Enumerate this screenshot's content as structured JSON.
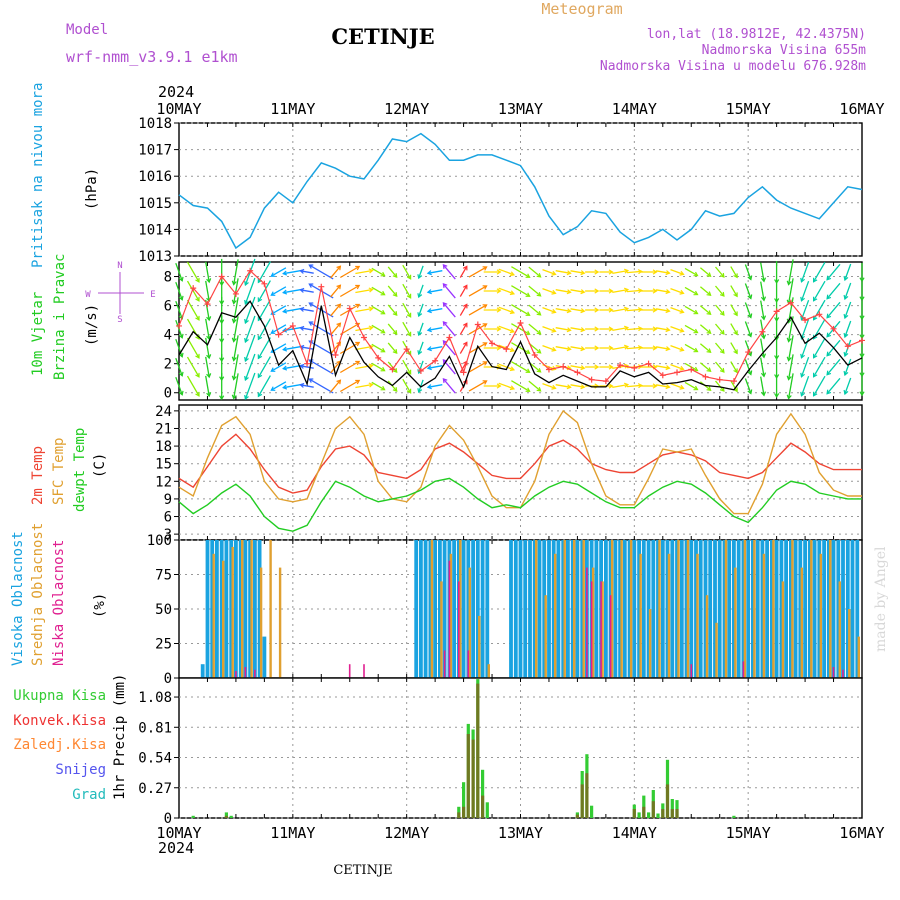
{
  "header": {
    "model_label": "Model",
    "model_name": "wrf-nmm_v3.9.1 e1km",
    "station": "CETINJE",
    "product": "Meteogram",
    "coords": "lon,lat (18.9812E, 42.4375N)",
    "elevation": "Nadmorska Visina 655m",
    "model_elevation": "Nadmorska Visina u modelu 676.928m",
    "footer_station": "CETINJE",
    "watermark": "made by Angel"
  },
  "colors": {
    "pressure": "#1aa3e0",
    "t2m": "#ee4433",
    "tsfc": "#e0a030",
    "dewpt": "#22cc22",
    "cloud_high": "#1aa3e0",
    "cloud_mid": "#e0a030",
    "cloud_low": "#e02090",
    "precip_total": "#33cc33",
    "precip_conv": "#ee3333",
    "precip_frz": "#ff8833",
    "snow": "#5555ee",
    "hail": "#22bbbb",
    "speed": "#000000",
    "gust": "#ff4444",
    "purple_label": "#b050d0",
    "orange_label": "#e0a860"
  },
  "time_axis": {
    "year": "2024",
    "labels": [
      "10MAY",
      "11MAY",
      "12MAY",
      "13MAY",
      "14MAY",
      "15MAY",
      "16MAY"
    ]
  },
  "panel_labels": {
    "pressure": {
      "lines": [
        "Pritisak na nivou mora"
      ],
      "unit": "(hPa)"
    },
    "wind": {
      "lines": [
        "10m Vjetar",
        "Brzina i Pravac"
      ],
      "unit": "(m/s)",
      "compass": [
        "N",
        "S",
        "E",
        "W"
      ]
    },
    "temp": {
      "lines": [
        "2m Temp",
        "SFC Temp",
        "dewpt Temp"
      ],
      "unit": "(C)"
    },
    "cloud": {
      "lines": [
        "Visoka Oblacnost",
        "Srednja Oblacnost",
        "Niska Oblacnost"
      ],
      "unit": "(%)"
    },
    "precip": {
      "legend": [
        "Ukupna Kisa",
        "Konvek.Kisa",
        "Zaledj.Kisa",
        "Snijeg",
        "Grad"
      ],
      "unit": "1hr Precip (mm)"
    }
  },
  "chart_data": [
    {
      "type": "line",
      "name": "pressure",
      "ylim": [
        1013,
        1018
      ],
      "yticks": [
        1013,
        1014,
        1015,
        1016,
        1017,
        1018
      ],
      "x_hours": [
        0,
        3,
        6,
        9,
        12,
        15,
        18,
        21,
        24,
        27,
        30,
        33,
        36,
        39,
        42,
        45,
        48,
        51,
        54,
        57,
        60,
        63,
        66,
        69,
        72,
        75,
        78,
        81,
        84,
        87,
        90,
        93,
        96,
        99,
        102,
        105,
        108,
        111,
        114,
        117,
        120,
        123,
        126,
        129,
        132,
        135,
        138,
        141,
        144
      ],
      "values": [
        1015.3,
        1014.9,
        1014.8,
        1014.3,
        1013.3,
        1013.7,
        1014.8,
        1015.4,
        1015.0,
        1015.8,
        1016.5,
        1016.3,
        1016.0,
        1015.9,
        1016.6,
        1017.4,
        1017.3,
        1017.6,
        1017.2,
        1016.6,
        1016.6,
        1016.8,
        1016.8,
        1016.6,
        1016.4,
        1015.6,
        1014.5,
        1013.8,
        1014.1,
        1014.7,
        1014.6,
        1013.9,
        1013.5,
        1013.7,
        1014.0,
        1013.6,
        1014.0,
        1014.7,
        1014.5,
        1014.6,
        1015.2,
        1015.6,
        1015.1,
        1014.8,
        1014.6,
        1014.4,
        1015.0,
        1015.6,
        1015.5
      ]
    },
    {
      "type": "line",
      "name": "wind",
      "ylim": [
        -0.5,
        9
      ],
      "yticks": [
        0,
        2,
        4,
        6,
        8
      ],
      "x_hours": [
        0,
        3,
        6,
        9,
        12,
        15,
        18,
        21,
        24,
        27,
        30,
        33,
        36,
        39,
        42,
        45,
        48,
        51,
        54,
        57,
        60,
        63,
        66,
        69,
        72,
        75,
        78,
        81,
        84,
        87,
        90,
        93,
        96,
        99,
        102,
        105,
        108,
        111,
        114,
        117,
        120,
        123,
        126,
        129,
        132,
        135,
        138,
        141,
        144
      ],
      "speed": [
        2.6,
        4.2,
        3.3,
        5.5,
        5.2,
        6.3,
        4.6,
        1.9,
        2.9,
        0.6,
        6.0,
        1.2,
        3.8,
        2.1,
        1.1,
        0.5,
        1.4,
        0.4,
        1.0,
        2.5,
        0.4,
        3.2,
        1.8,
        1.6,
        3.5,
        1.3,
        0.7,
        1.2,
        0.8,
        0.4,
        0.4,
        1.5,
        1.1,
        1.4,
        0.6,
        0.7,
        0.9,
        0.5,
        0.4,
        0.2,
        1.5,
        2.7,
        3.8,
        5.2,
        3.4,
        4.1,
        3.1,
        1.9,
        2.4
      ],
      "gust": [
        4.6,
        7.2,
        6.1,
        8.0,
        6.8,
        8.4,
        7.5,
        4.0,
        4.6,
        2.0,
        7.3,
        2.6,
        5.8,
        3.8,
        2.4,
        1.6,
        3.0,
        1.5,
        2.2,
        3.8,
        1.4,
        4.7,
        3.4,
        3.0,
        4.8,
        2.6,
        1.6,
        1.8,
        1.4,
        0.9,
        0.8,
        1.9,
        1.7,
        2.0,
        1.2,
        1.4,
        1.6,
        1.1,
        0.9,
        0.8,
        2.8,
        4.2,
        5.6,
        6.2,
        5.0,
        5.4,
        4.4,
        3.2,
        3.6
      ],
      "direction_deg": [
        160,
        150,
        170,
        180,
        190,
        200,
        210,
        240,
        260,
        280,
        300,
        40,
        60,
        80,
        120,
        140,
        150,
        200,
        260,
        320,
        30,
        60,
        90,
        110,
        120,
        130,
        110,
        100,
        100,
        90,
        90,
        80,
        85,
        90,
        100,
        110,
        120,
        130,
        140,
        150,
        160,
        170,
        180,
        190,
        200,
        210,
        220,
        200,
        180
      ]
    },
    {
      "type": "line",
      "name": "temperature",
      "ylim": [
        2,
        25
      ],
      "yticks": [
        3,
        6,
        9,
        12,
        15,
        18,
        21,
        24
      ],
      "x_hours": [
        0,
        3,
        6,
        9,
        12,
        15,
        18,
        21,
        24,
        27,
        30,
        33,
        36,
        39,
        42,
        45,
        48,
        51,
        54,
        57,
        60,
        63,
        66,
        69,
        72,
        75,
        78,
        81,
        84,
        87,
        90,
        93,
        96,
        99,
        102,
        105,
        108,
        111,
        114,
        117,
        120,
        123,
        126,
        129,
        132,
        135,
        138,
        141,
        144
      ],
      "series": [
        {
          "name": "2m Temp",
          "values": [
            12.5,
            11.0,
            14.5,
            18.0,
            20.0,
            17.5,
            14.0,
            11.0,
            10.0,
            10.5,
            14.5,
            17.5,
            18.0,
            16.5,
            13.5,
            13.0,
            12.5,
            14.0,
            17.5,
            18.5,
            17.0,
            15.0,
            13.0,
            12.5,
            12.5,
            15.0,
            18.0,
            19.0,
            17.5,
            15.0,
            14.0,
            13.5,
            13.5,
            15.0,
            16.5,
            17.0,
            16.5,
            15.5,
            13.5,
            13.0,
            12.5,
            13.5,
            16.0,
            18.5,
            17.0,
            15.0,
            14.0,
            14.0,
            14.0
          ]
        },
        {
          "name": "SFC Temp",
          "values": [
            11.0,
            9.5,
            16.0,
            21.5,
            23.0,
            20.0,
            12.0,
            9.0,
            8.5,
            9.0,
            15.0,
            21.0,
            23.0,
            20.0,
            12.0,
            9.0,
            8.5,
            11.0,
            18.0,
            21.5,
            19.0,
            14.5,
            9.5,
            7.5,
            7.5,
            12.0,
            20.0,
            24.0,
            22.0,
            15.0,
            9.5,
            8.0,
            8.0,
            12.5,
            17.5,
            17.0,
            17.5,
            13.0,
            9.0,
            6.5,
            6.5,
            11.5,
            20.0,
            23.5,
            20.0,
            13.5,
            10.5,
            9.5,
            9.5
          ]
        },
        {
          "name": "dewpt Temp",
          "values": [
            8.5,
            6.5,
            8.0,
            10.0,
            11.5,
            9.5,
            6.0,
            4.0,
            3.5,
            4.5,
            8.5,
            12.0,
            11.0,
            9.5,
            8.5,
            9.0,
            9.5,
            10.5,
            12.0,
            12.5,
            11.0,
            9.0,
            7.5,
            8.0,
            7.5,
            9.5,
            11.0,
            12.0,
            11.5,
            10.0,
            8.5,
            7.5,
            7.5,
            9.5,
            11.0,
            12.0,
            11.5,
            10.0,
            8.0,
            6.0,
            5.0,
            7.5,
            10.5,
            12.0,
            11.5,
            10.0,
            9.5,
            9.0,
            9.0
          ]
        }
      ]
    },
    {
      "type": "bar",
      "name": "cloud_cover",
      "ylim": [
        0,
        100
      ],
      "yticks": [
        0,
        25,
        50,
        75,
        100
      ],
      "series": [
        {
          "name": "Visoka Oblacnost",
          "x_hours": [
            5,
            6,
            7,
            8,
            9,
            10,
            11,
            12,
            13,
            14,
            15,
            16,
            17,
            18,
            50,
            51,
            52,
            53,
            54,
            55,
            56,
            57,
            58,
            59,
            60,
            61,
            62,
            63,
            64,
            65,
            70,
            71,
            72,
            73,
            74,
            75,
            76,
            77,
            78,
            79,
            80,
            81,
            82,
            83,
            84,
            85,
            86,
            87,
            88,
            89,
            90,
            91,
            92,
            93,
            94,
            95,
            96,
            97,
            98,
            99,
            100,
            101,
            102,
            103,
            104,
            105,
            106,
            107,
            108,
            109,
            110,
            111,
            112,
            113,
            114,
            115,
            116,
            117,
            118,
            119,
            120,
            121,
            122,
            123,
            124,
            125,
            126,
            127,
            128,
            129,
            130,
            131,
            132,
            133,
            134,
            135,
            136,
            137,
            138,
            139,
            140,
            141,
            142,
            143
          ],
          "values": [
            10,
            100,
            100,
            100,
            100,
            100,
            100,
            100,
            100,
            100,
            100,
            100,
            100,
            30,
            100,
            100,
            100,
            100,
            100,
            100,
            100,
            100,
            100,
            100,
            100,
            100,
            100,
            100,
            100,
            100,
            100,
            100,
            100,
            100,
            100,
            100,
            100,
            100,
            100,
            100,
            100,
            100,
            100,
            100,
            100,
            100,
            100,
            100,
            100,
            100,
            100,
            100,
            100,
            100,
            100,
            100,
            100,
            100,
            100,
            100,
            100,
            100,
            100,
            100,
            100,
            100,
            100,
            100,
            100,
            100,
            100,
            100,
            100,
            100,
            100,
            100,
            100,
            100,
            100,
            100,
            100,
            100,
            100,
            100,
            100,
            100,
            100,
            100,
            100,
            100,
            100,
            100,
            100,
            100,
            100,
            100,
            100,
            100,
            100,
            100,
            100,
            100,
            100,
            100
          ]
        },
        {
          "name": "Srednja Oblacnost",
          "x_hours": [
            7,
            9,
            11,
            13,
            15,
            17,
            19,
            21,
            53,
            55,
            57,
            59,
            61,
            63,
            65,
            75,
            77,
            79,
            81,
            83,
            85,
            87,
            89,
            91,
            93,
            95,
            97,
            99,
            101,
            103,
            105,
            107,
            109,
            111,
            113,
            115,
            117,
            119,
            121,
            123,
            125,
            127,
            129,
            131,
            133,
            135,
            137,
            139,
            141,
            143
          ],
          "values": [
            90,
            85,
            95,
            100,
            100,
            80,
            100,
            80,
            100,
            70,
            90,
            100,
            80,
            45,
            10,
            100,
            60,
            90,
            100,
            100,
            100,
            80,
            70,
            100,
            100,
            100,
            90,
            50,
            100,
            90,
            100,
            100,
            90,
            60,
            40,
            100,
            80,
            100,
            100,
            90,
            100,
            70,
            100,
            80,
            100,
            90,
            100,
            70,
            50,
            30
          ]
        },
        {
          "name": "Niska Oblacnost",
          "x_hours": [
            12,
            14,
            16,
            36,
            39,
            56,
            57,
            59,
            61,
            86,
            87,
            89,
            91,
            108,
            119,
            138,
            140
          ],
          "values": [
            5,
            8,
            6,
            10,
            10,
            20,
            85,
            70,
            20,
            80,
            70,
            70,
            60,
            10,
            12,
            8,
            6
          ]
        }
      ]
    },
    {
      "type": "bar",
      "name": "precip",
      "ylim": [
        0,
        1.25
      ],
      "yticks": [
        0,
        0.27,
        0.54,
        0.81,
        1.08
      ],
      "series": [
        {
          "name": "Ukupna Kisa",
          "x_hours": [
            3,
            10,
            11,
            59,
            60,
            61,
            62,
            63,
            64,
            65,
            84,
            85,
            86,
            87,
            96,
            97,
            98,
            99,
            100,
            101,
            102,
            103,
            104,
            105,
            117
          ],
          "values": [
            0.02,
            0.05,
            0.02,
            0.1,
            0.32,
            0.84,
            0.79,
            1.24,
            0.43,
            0.14,
            0.05,
            0.42,
            0.57,
            0.11,
            0.12,
            0.05,
            0.2,
            0.05,
            0.25,
            0.04,
            0.13,
            0.52,
            0.17,
            0.16,
            0.02
          ]
        },
        {
          "name": "Konvek.Kisa",
          "x_hours": [
            10,
            59,
            60,
            61,
            62,
            63,
            64,
            84,
            85,
            86,
            96,
            98,
            100,
            102,
            103,
            104,
            105
          ],
          "values": [
            0.02,
            0.05,
            0.1,
            0.75,
            0.7,
            1.2,
            0.2,
            0.03,
            0.3,
            0.4,
            0.08,
            0.1,
            0.15,
            0.08,
            0.3,
            0.08,
            0.08
          ]
        },
        {
          "name": "Zaledj.Kisa",
          "x_hours": [],
          "values": []
        },
        {
          "name": "Snijeg",
          "x_hours": [],
          "values": []
        },
        {
          "name": "Grad",
          "x_hours": [],
          "values": []
        }
      ]
    }
  ]
}
